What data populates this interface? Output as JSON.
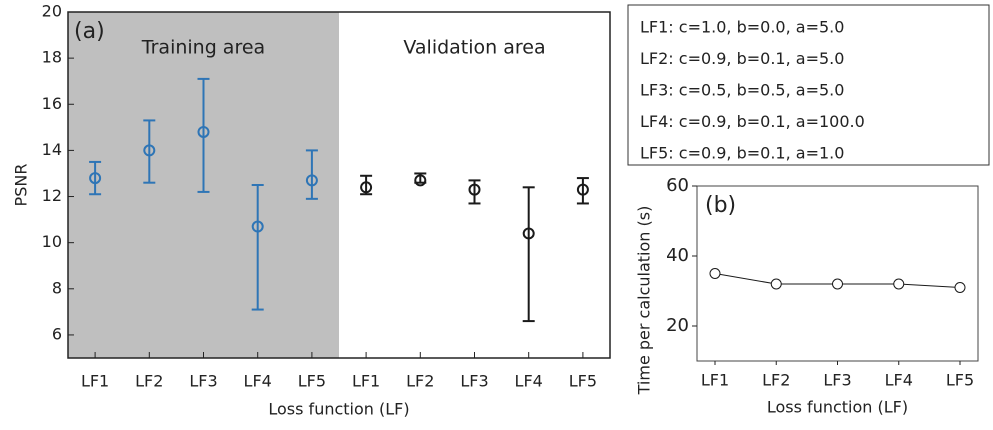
{
  "chart_data": [
    {
      "type": "errorbar",
      "panel_label": "(a)",
      "y_label": "PSNR",
      "x_label": "Loss function (LF)",
      "ylim": [
        5,
        20
      ],
      "yticks": [
        6,
        8,
        10,
        12,
        14,
        16,
        18,
        20
      ],
      "groups": [
        {
          "name": "Training area",
          "color": "#2e75b6",
          "background": "#bfbfbf",
          "categories": [
            "LF1",
            "LF2",
            "LF3",
            "LF4",
            "LF5"
          ],
          "values": [
            12.8,
            14.0,
            14.8,
            10.7,
            12.7
          ],
          "low": [
            12.1,
            12.6,
            12.2,
            7.1,
            11.9
          ],
          "high": [
            13.5,
            15.3,
            17.1,
            12.5,
            14.0
          ]
        },
        {
          "name": "Validation area",
          "color": "#1a1a1a",
          "background": "#ffffff",
          "categories": [
            "LF1",
            "LF2",
            "LF3",
            "LF4",
            "LF5"
          ],
          "values": [
            12.4,
            12.7,
            12.3,
            10.4,
            12.3
          ],
          "low": [
            12.1,
            12.6,
            11.7,
            6.6,
            11.7
          ],
          "high": [
            12.9,
            13.0,
            12.7,
            12.4,
            12.8
          ]
        }
      ]
    },
    {
      "type": "line",
      "panel_label": "(b)",
      "y_label": "Time  per calculation (s)",
      "x_label": "Loss function (LF)",
      "categories": [
        "LF1",
        "LF2",
        "LF3",
        "LF4",
        "LF5"
      ],
      "values": [
        35,
        32,
        32,
        32,
        31
      ],
      "color": "#1a1a1a",
      "ylim": [
        10,
        60
      ],
      "yticks": [
        20,
        40,
        60
      ]
    }
  ],
  "parameter_box": [
    "LF1: c=1.0, b=0.0, a=5.0",
    "LF2: c=0.9, b=0.1, a=5.0",
    "LF3: c=0.5, b=0.5, a=5.0",
    "LF4: c=0.9, b=0.1, a=100.0",
    "LF5: c=0.9, b=0.1, a=1.0"
  ]
}
